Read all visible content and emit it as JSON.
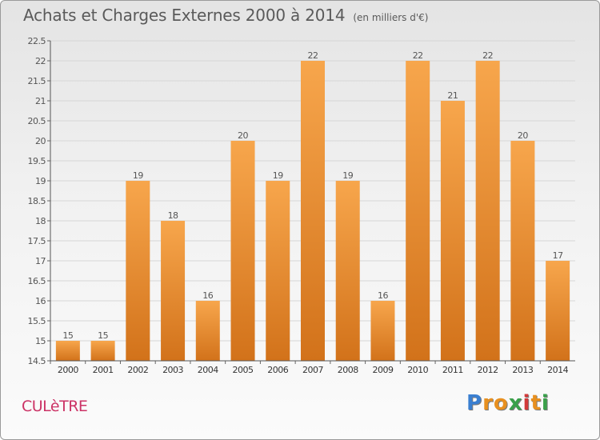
{
  "header": {
    "title": "Achats et Charges Externes 2000 à 2014",
    "subtitle": "(en milliers d'€)"
  },
  "footer": {
    "commune": "CULèTRE",
    "logo_letters": [
      "P",
      "r",
      "o",
      "x",
      "i",
      "t",
      "i"
    ],
    "logo_colors": [
      "#3a7fd1",
      "#e8901f",
      "#e8901f",
      "#3aa04a",
      "#d23a3a",
      "#e8901f",
      "#3aa04a"
    ]
  },
  "chart_data": {
    "type": "bar",
    "categories": [
      "2000",
      "2001",
      "2002",
      "2003",
      "2004",
      "2005",
      "2006",
      "2007",
      "2008",
      "2009",
      "2010",
      "2011",
      "2012",
      "2013",
      "2014"
    ],
    "values": [
      15,
      15,
      19,
      18,
      16,
      20,
      19,
      22,
      19,
      16,
      22,
      21,
      22,
      20,
      17
    ],
    "data_labels": [
      "15",
      "15",
      "19",
      "18",
      "16",
      "20",
      "19",
      "22",
      "19",
      "16",
      "22",
      "21",
      "22",
      "20",
      "17"
    ],
    "ylim": [
      14.5,
      22.5
    ],
    "yticks": [
      "14.5",
      "15",
      "15.5",
      "16",
      "16.5",
      "17",
      "17.5",
      "18",
      "18.5",
      "19",
      "19.5",
      "20",
      "20.5",
      "21",
      "21.5",
      "22",
      "22.5"
    ],
    "grid": true,
    "bar_color": "#f0a040"
  }
}
